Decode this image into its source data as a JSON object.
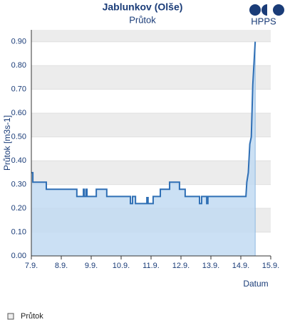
{
  "chart_data": {
    "type": "area",
    "title": "Jablunkov (Olše)",
    "subtitle": "Průtok",
    "logo": "HPPS",
    "y_label": "Průtok [m3s-1]",
    "x_label": "Datum",
    "xlim": [
      7,
      15
    ],
    "ylim": [
      0,
      0.95
    ],
    "xticks": [
      {
        "value": 7,
        "label": "7.9."
      },
      {
        "value": 8,
        "label": "8.9."
      },
      {
        "value": 9,
        "label": "9.9."
      },
      {
        "value": 10,
        "label": "10.9."
      },
      {
        "value": 11,
        "label": "11.9."
      },
      {
        "value": 12,
        "label": "12.9."
      },
      {
        "value": 13,
        "label": "13.9."
      },
      {
        "value": 14,
        "label": "14.9."
      },
      {
        "value": 15,
        "label": "15.9."
      }
    ],
    "yticks": [
      {
        "value": 0,
        "label": "0.00"
      },
      {
        "value": 0.1,
        "label": "0.10"
      },
      {
        "value": 0.2,
        "label": "0.20"
      },
      {
        "value": 0.3,
        "label": "0.30"
      },
      {
        "value": 0.4,
        "label": "0.40"
      },
      {
        "value": 0.5,
        "label": "0.50"
      },
      {
        "value": 0.6,
        "label": "0.60"
      },
      {
        "value": 0.7,
        "label": "0.70"
      },
      {
        "value": 0.8,
        "label": "0.80"
      },
      {
        "value": 0.9,
        "label": "0.90"
      }
    ],
    "bands": true,
    "series": [
      {
        "name": "Průtok",
        "color": "#2f6fb5",
        "fill": "#c2dbf2",
        "x": [
          7.0,
          7.05,
          7.05,
          7.5,
          7.5,
          8.52,
          8.52,
          8.74,
          8.74,
          8.77,
          8.77,
          8.83,
          8.83,
          8.86,
          8.86,
          9.17,
          9.17,
          9.52,
          9.52,
          10.31,
          10.31,
          10.38,
          10.38,
          10.48,
          10.48,
          10.86,
          10.86,
          10.9,
          10.9,
          11.07,
          11.07,
          11.31,
          11.31,
          11.62,
          11.62,
          11.95,
          11.95,
          12.14,
          12.14,
          12.62,
          12.62,
          12.69,
          12.69,
          12.86,
          12.86,
          12.9,
          12.9,
          14.17,
          14.2,
          14.25,
          14.3,
          14.35,
          14.4,
          14.48
        ],
        "values": [
          0.35,
          0.35,
          0.31,
          0.31,
          0.28,
          0.28,
          0.25,
          0.25,
          0.28,
          0.28,
          0.25,
          0.25,
          0.28,
          0.28,
          0.25,
          0.25,
          0.28,
          0.28,
          0.25,
          0.25,
          0.22,
          0.22,
          0.25,
          0.25,
          0.22,
          0.22,
          0.245,
          0.245,
          0.22,
          0.22,
          0.25,
          0.25,
          0.28,
          0.28,
          0.31,
          0.31,
          0.28,
          0.28,
          0.25,
          0.25,
          0.22,
          0.22,
          0.25,
          0.25,
          0.22,
          0.22,
          0.25,
          0.25,
          0.31,
          0.35,
          0.47,
          0.5,
          0.72,
          0.9
        ]
      }
    ]
  }
}
